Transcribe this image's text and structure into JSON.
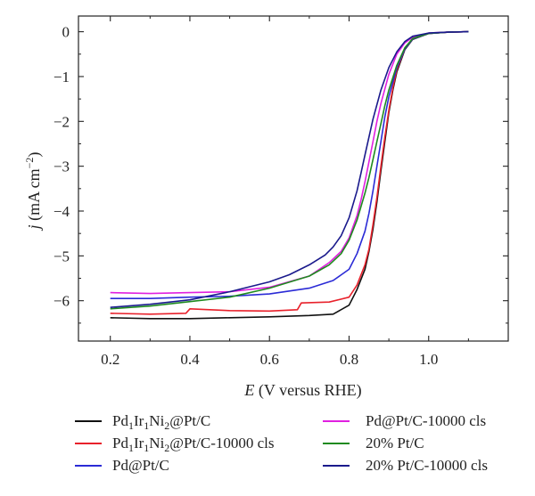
{
  "chart_data": {
    "type": "line",
    "title": "",
    "xlabel": {
      "var": "E",
      "rest": " (V versus RHE)"
    },
    "ylabel": {
      "var": "j",
      "rest": " (mA cm",
      "sup": "−2",
      "close": ")"
    },
    "xlim": [
      0.12,
      1.2
    ],
    "ylim": [
      -6.9,
      0.35
    ],
    "xticks": [
      0.2,
      0.4,
      0.6,
      0.8,
      1.0
    ],
    "yticks": [
      0,
      -1,
      -2,
      -3,
      -4,
      -5,
      -6
    ],
    "xtick_labels": [
      "0.2",
      "0.4",
      "0.6",
      "0.8",
      "1.0"
    ],
    "ytick_labels": [
      "0",
      "−1",
      "−2",
      "−3",
      "−4",
      "−5",
      "−6"
    ],
    "grid": false,
    "legend_position": "bottom",
    "series": [
      {
        "key": "s1",
        "name": {
          "parts": [
            [
              "Pd",
              ""
            ],
            [
              "1",
              "sub"
            ],
            [
              "Ir",
              ""
            ],
            [
              "1",
              "sub"
            ],
            [
              "Ni",
              ""
            ],
            [
              "2",
              "sub"
            ],
            [
              "@Pt/C",
              ""
            ]
          ]
        },
        "color": "#111111",
        "x": [
          0.2,
          0.3,
          0.4,
          0.5,
          0.6,
          0.7,
          0.76,
          0.8,
          0.82,
          0.84,
          0.85,
          0.86,
          0.87,
          0.88,
          0.89,
          0.9,
          0.91,
          0.92,
          0.94,
          0.96,
          1.0,
          1.05,
          1.1
        ],
        "y": [
          -6.38,
          -6.4,
          -6.4,
          -6.38,
          -6.36,
          -6.33,
          -6.3,
          -6.1,
          -5.75,
          -5.3,
          -4.9,
          -4.4,
          -3.8,
          -3.1,
          -2.45,
          -1.8,
          -1.3,
          -0.9,
          -0.4,
          -0.17,
          -0.04,
          -0.01,
          0.0
        ]
      },
      {
        "key": "s2",
        "name": {
          "parts": [
            [
              "Pd",
              ""
            ],
            [
              "1",
              "sub"
            ],
            [
              "Ir",
              ""
            ],
            [
              "1",
              "sub"
            ],
            [
              "Ni",
              ""
            ],
            [
              "2",
              "sub"
            ],
            [
              "@Pt/C-10000 cls",
              ""
            ]
          ]
        },
        "color": "#e8212b",
        "x": [
          0.2,
          0.3,
          0.39,
          0.4,
          0.5,
          0.6,
          0.67,
          0.68,
          0.75,
          0.8,
          0.82,
          0.84,
          0.85,
          0.86,
          0.87,
          0.88,
          0.89,
          0.9,
          0.91,
          0.92,
          0.94,
          0.96,
          1.0,
          1.05,
          1.1
        ],
        "y": [
          -6.28,
          -6.3,
          -6.28,
          -6.18,
          -6.22,
          -6.23,
          -6.2,
          -6.05,
          -6.03,
          -5.92,
          -5.65,
          -5.2,
          -4.85,
          -4.3,
          -3.7,
          -3.0,
          -2.35,
          -1.75,
          -1.25,
          -0.85,
          -0.38,
          -0.16,
          -0.04,
          -0.01,
          0.0
        ]
      },
      {
        "key": "s3",
        "name": {
          "parts": [
            [
              "Pd@Pt/C",
              ""
            ]
          ]
        },
        "color": "#2b2bd6",
        "x": [
          0.2,
          0.3,
          0.4,
          0.5,
          0.6,
          0.7,
          0.76,
          0.8,
          0.82,
          0.84,
          0.85,
          0.86,
          0.87,
          0.88,
          0.89,
          0.9,
          0.92,
          0.94,
          0.96,
          1.0,
          1.05,
          1.1
        ],
        "y": [
          -5.95,
          -5.95,
          -5.92,
          -5.9,
          -5.85,
          -5.72,
          -5.55,
          -5.3,
          -4.95,
          -4.45,
          -4.05,
          -3.55,
          -3.0,
          -2.45,
          -1.9,
          -1.45,
          -0.8,
          -0.38,
          -0.16,
          -0.04,
          -0.01,
          0.0
        ]
      },
      {
        "key": "s4",
        "name": {
          "parts": [
            [
              "Pd@Pt/C-10000 cls",
              ""
            ]
          ]
        },
        "color": "#e020e0",
        "x": [
          0.2,
          0.3,
          0.4,
          0.5,
          0.6,
          0.7,
          0.75,
          0.78,
          0.8,
          0.82,
          0.83,
          0.84,
          0.85,
          0.86,
          0.87,
          0.88,
          0.9,
          0.92,
          0.94,
          0.96,
          1.0,
          1.05,
          1.1
        ],
        "y": [
          -5.82,
          -5.84,
          -5.82,
          -5.8,
          -5.7,
          -5.45,
          -5.15,
          -4.9,
          -4.6,
          -4.1,
          -3.75,
          -3.35,
          -2.9,
          -2.45,
          -2.0,
          -1.6,
          -0.95,
          -0.5,
          -0.25,
          -0.12,
          -0.03,
          -0.01,
          0.0
        ]
      },
      {
        "key": "s5",
        "name": {
          "parts": [
            [
              "20% Pt/C",
              ""
            ]
          ]
        },
        "color": "#1f8a1f",
        "x": [
          0.2,
          0.3,
          0.4,
          0.5,
          0.6,
          0.7,
          0.75,
          0.78,
          0.8,
          0.82,
          0.84,
          0.85,
          0.86,
          0.87,
          0.88,
          0.89,
          0.9,
          0.92,
          0.94,
          0.96,
          1.0,
          1.05,
          1.1
        ],
        "y": [
          -6.18,
          -6.12,
          -6.02,
          -5.92,
          -5.72,
          -5.45,
          -5.2,
          -4.95,
          -4.65,
          -4.2,
          -3.6,
          -3.25,
          -2.85,
          -2.45,
          -2.05,
          -1.65,
          -1.3,
          -0.75,
          -0.36,
          -0.15,
          -0.04,
          -0.01,
          0.0
        ]
      },
      {
        "key": "s6",
        "name": {
          "parts": [
            [
              "20% Pt/C-10000 cls",
              ""
            ]
          ]
        },
        "color": "#1a1a8c",
        "x": [
          0.2,
          0.3,
          0.4,
          0.5,
          0.6,
          0.65,
          0.7,
          0.74,
          0.76,
          0.78,
          0.8,
          0.82,
          0.83,
          0.84,
          0.85,
          0.86,
          0.88,
          0.9,
          0.92,
          0.94,
          0.96,
          1.0,
          1.05,
          1.1
        ],
        "y": [
          -6.15,
          -6.08,
          -5.98,
          -5.8,
          -5.58,
          -5.42,
          -5.2,
          -4.98,
          -4.8,
          -4.55,
          -4.15,
          -3.55,
          -3.15,
          -2.75,
          -2.35,
          -1.95,
          -1.3,
          -0.8,
          -0.45,
          -0.22,
          -0.1,
          -0.03,
          -0.01,
          0.0
        ]
      }
    ]
  }
}
